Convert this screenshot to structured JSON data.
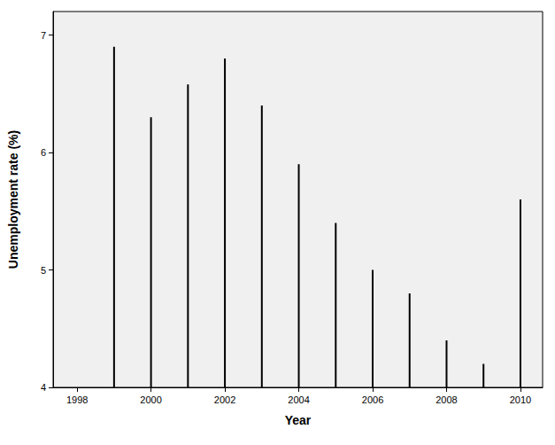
{
  "chart_data": {
    "type": "bar",
    "x_label": "Year",
    "y_label": "Unemployment rate (%)",
    "x": [
      1999,
      2000,
      2001,
      2002,
      2003,
      2004,
      2005,
      2006,
      2007,
      2008,
      2009,
      2010
    ],
    "values": [
      6.9,
      6.3,
      6.58,
      6.8,
      6.4,
      5.9,
      5.4,
      5.0,
      4.8,
      4.4,
      4.2,
      5.6
    ],
    "color": "#000000",
    "xlim": [
      1997.35,
      2010.6
    ],
    "xticks": [
      1998,
      2000,
      2002,
      2004,
      2006,
      2008,
      2010
    ],
    "ylim": [
      4,
      7.2
    ],
    "yticks": [
      4,
      5,
      6,
      7
    ],
    "grid": false
  }
}
